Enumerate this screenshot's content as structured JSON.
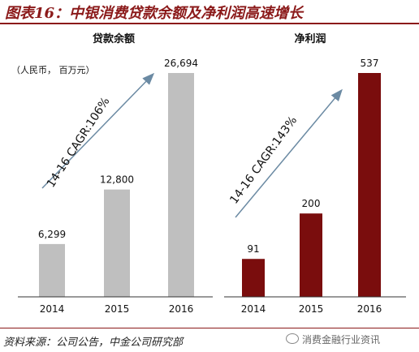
{
  "page_title": "图表16：中银消费贷款余额及净利润高速增长",
  "source_note": "资料来源：公司公告，中金公司研究部",
  "watermark": "消费金融行业资讯",
  "colors": {
    "title": "#8b1a1a",
    "left_bars": "#bfbfbf",
    "right_bars": "#7a0d0d",
    "arrow": "#6b8aa3"
  },
  "chart_data": [
    {
      "type": "bar",
      "title": "贷款余额",
      "unit_note": "（人民币， 百万元）",
      "categories": [
        "2014",
        "2015",
        "2016"
      ],
      "values": [
        6299,
        12800,
        26694
      ],
      "value_labels": [
        "6,299",
        "12,800",
        "26,694"
      ],
      "annotation": "14-16 CAGR:106%"
    },
    {
      "type": "bar",
      "title": "净利润",
      "categories": [
        "2014",
        "2015",
        "2016"
      ],
      "values": [
        91,
        200,
        537
      ],
      "value_labels": [
        "91",
        "200",
        "537"
      ],
      "annotation": "14-16 CAGR:143%"
    }
  ]
}
